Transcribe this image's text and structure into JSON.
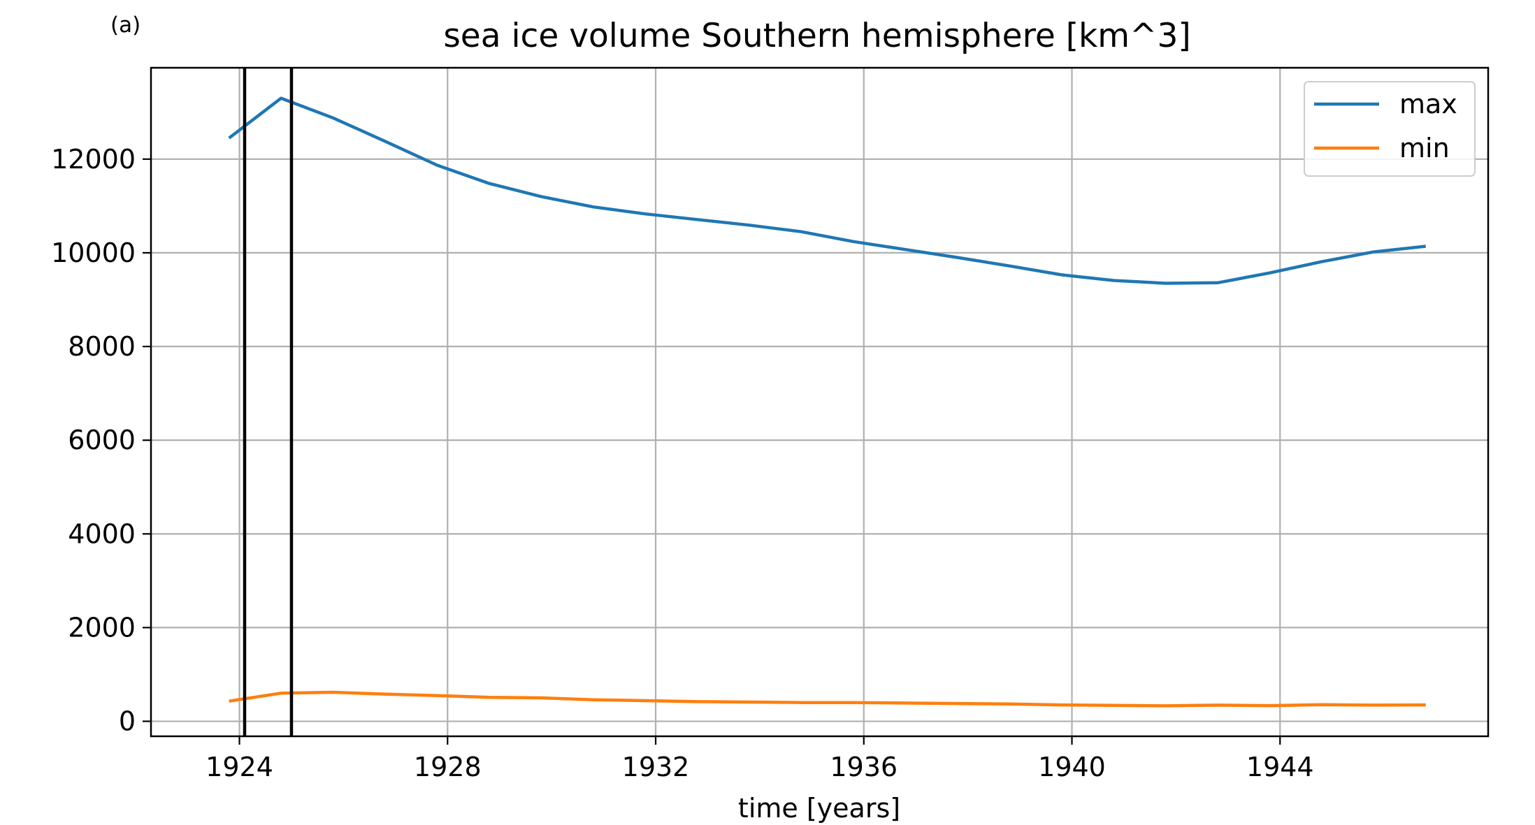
{
  "panel_label": "(a)",
  "chart_data": {
    "type": "line",
    "title": "sea ice volume Southern hemisphere [km^3]",
    "xlabel": "time [years]",
    "ylabel": "",
    "xlim": [
      1922.3,
      1948.0
    ],
    "ylim": [
      -320,
      13950
    ],
    "x_ticks": [
      1924,
      1928,
      1932,
      1936,
      1940,
      1944
    ],
    "y_ticks": [
      0,
      2000,
      4000,
      6000,
      8000,
      10000,
      12000
    ],
    "grid": true,
    "legend_position": "top-right",
    "vertical_lines": [
      1924.1,
      1925.0
    ],
    "vertical_line_color": "#000000",
    "series": [
      {
        "name": "max",
        "color": "#1f77b4",
        "x": [
          1923.8,
          1924.8,
          1925.8,
          1926.8,
          1927.8,
          1928.8,
          1929.8,
          1930.8,
          1931.8,
          1932.8,
          1933.8,
          1934.8,
          1935.8,
          1936.8,
          1937.8,
          1938.8,
          1939.8,
          1940.8,
          1941.8,
          1942.8,
          1943.8,
          1944.8,
          1945.8,
          1946.8
        ],
        "values": [
          12450,
          13300,
          12880,
          12380,
          11870,
          11480,
          11200,
          10980,
          10830,
          10710,
          10590,
          10450,
          10240,
          10070,
          9900,
          9720,
          9530,
          9410,
          9350,
          9360,
          9570,
          9810,
          10020,
          10140
        ]
      },
      {
        "name": "min",
        "color": "#ff7f0e",
        "x": [
          1923.8,
          1924.8,
          1925.8,
          1926.8,
          1927.8,
          1928.8,
          1929.8,
          1930.8,
          1931.8,
          1932.8,
          1933.8,
          1934.8,
          1935.8,
          1936.8,
          1937.8,
          1938.8,
          1939.8,
          1940.8,
          1941.8,
          1942.8,
          1943.8,
          1944.8,
          1945.8,
          1946.8
        ],
        "values": [
          430,
          600,
          620,
          580,
          550,
          510,
          500,
          460,
          440,
          420,
          410,
          400,
          400,
          390,
          380,
          370,
          350,
          340,
          330,
          345,
          335,
          355,
          345,
          350
        ]
      }
    ]
  }
}
